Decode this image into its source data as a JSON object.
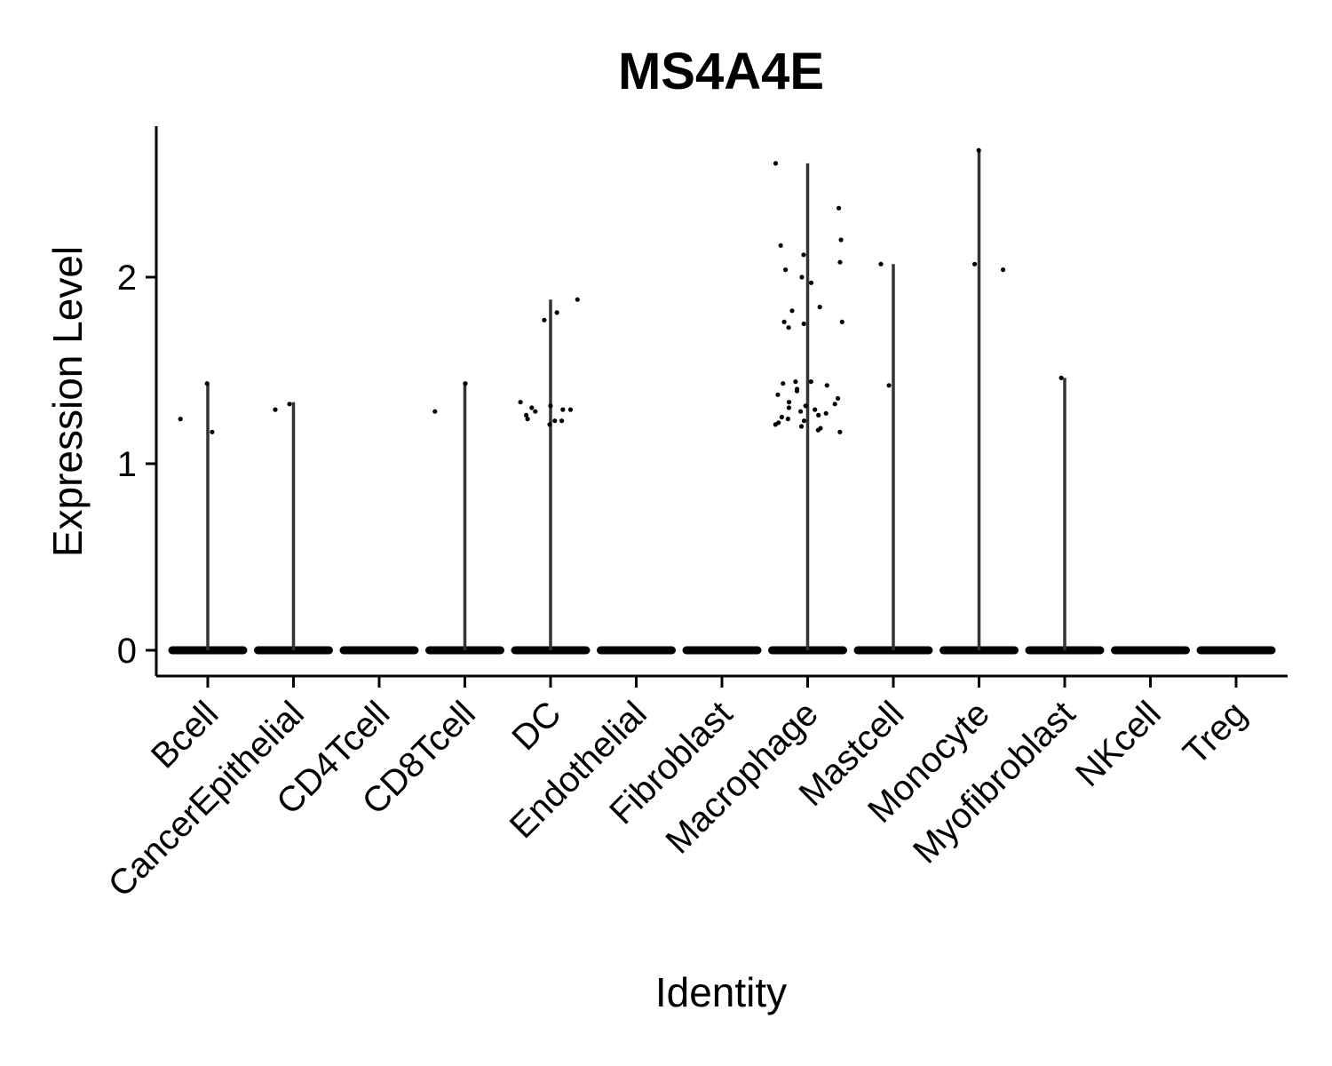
{
  "chart_data": {
    "type": "violin",
    "title": "MS4A4E",
    "xlabel": "Identity",
    "ylabel": "Expression Level",
    "ylim": [
      -0.14,
      2.82
    ],
    "yticks": [
      0,
      1,
      2
    ],
    "grid": false,
    "legend": "none",
    "categories": [
      "Bcell",
      "CancerEpithelial",
      "CD4Tcell",
      "CD8Tcell",
      "DC",
      "Endothelial",
      "Fibroblast",
      "Macrophage",
      "Mastcell",
      "Monocyte",
      "Myofibroblast",
      "NKcell",
      "Treg"
    ],
    "max_values": [
      1.43,
      1.33,
      0,
      1.44,
      1.88,
      0,
      0,
      2.61,
      2.07,
      2.68,
      1.46,
      0,
      0
    ],
    "points": [
      {
        "category": "Bcell",
        "y": [
          1.43,
          1.17,
          1.24
        ]
      },
      {
        "category": "CancerEpithelial",
        "y": [
          1.29,
          1.32
        ]
      },
      {
        "category": "CD4Tcell",
        "y": []
      },
      {
        "category": "CD8Tcell",
        "y": [
          1.43,
          1.28
        ]
      },
      {
        "category": "DC",
        "y": [
          1.88,
          1.81,
          1.77,
          1.28,
          1.29,
          1.23,
          1.33,
          1.31,
          1.3,
          1.29,
          1.26,
          1.23,
          1.21,
          1.24
        ]
      },
      {
        "category": "Endothelial",
        "y": []
      },
      {
        "category": "Fibroblast",
        "y": []
      },
      {
        "category": "Macrophage",
        "y": [
          2.61,
          2.37,
          2.2,
          2.17,
          2.12,
          2.08,
          2.04,
          2.0,
          1.97,
          1.84,
          1.82,
          1.76,
          1.76,
          1.75,
          1.73,
          1.44,
          1.44,
          1.43,
          1.42,
          1.4,
          1.39,
          1.37,
          1.35,
          1.33,
          1.32,
          1.31,
          1.3,
          1.29,
          1.28,
          1.27,
          1.26,
          1.25,
          1.24,
          1.23,
          1.22,
          1.21,
          1.2,
          1.19,
          1.18,
          1.17
        ]
      },
      {
        "category": "Mastcell",
        "y": [
          2.07,
          1.42
        ]
      },
      {
        "category": "Monocyte",
        "y": [
          2.68,
          2.07,
          2.04
        ]
      },
      {
        "category": "Myofibroblast",
        "y": [
          1.46
        ]
      },
      {
        "category": "NKcell",
        "y": []
      },
      {
        "category": "Treg",
        "y": []
      }
    ]
  }
}
